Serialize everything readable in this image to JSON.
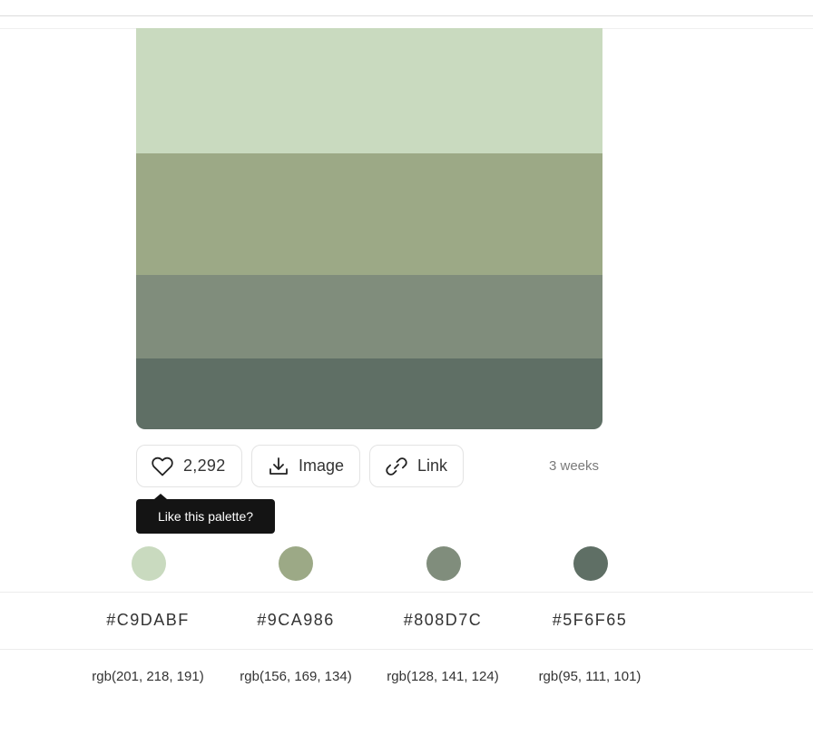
{
  "palette": {
    "colors": [
      {
        "hex": "#C9DABF",
        "rgb": "rgb(201, 218, 191)",
        "swatch": "#C9DABF"
      },
      {
        "hex": "#9CA986",
        "rgb": "rgb(156, 169, 134)",
        "swatch": "#9CA986"
      },
      {
        "hex": "#808D7C",
        "rgb": "rgb(128, 141, 124)",
        "swatch": "#808D7C"
      },
      {
        "hex": "#5F6F65",
        "rgb": "rgb(95, 111, 101)",
        "swatch": "#5F6F65"
      }
    ]
  },
  "actions": {
    "like_count": "2,292",
    "like_icon": "heart-icon",
    "image_label": "Image",
    "image_icon": "download-icon",
    "link_label": "Link",
    "link_icon": "link-icon"
  },
  "meta": {
    "age": "3 weeks"
  },
  "tooltip": {
    "text": "Like this palette?"
  }
}
